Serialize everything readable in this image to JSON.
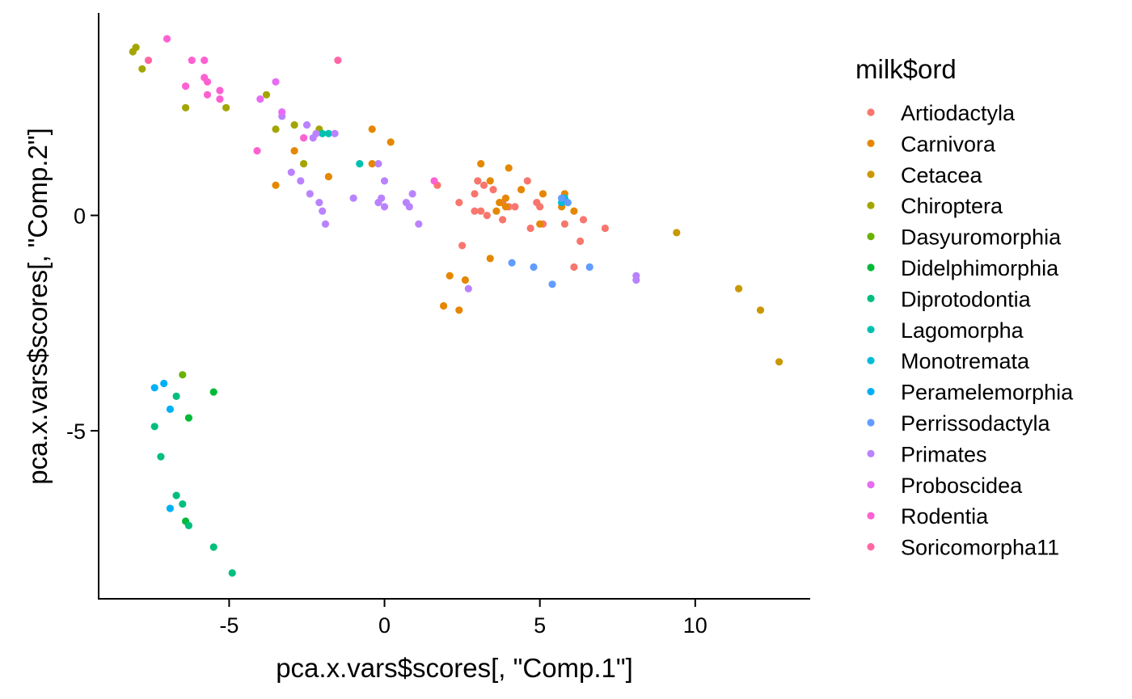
{
  "chart_data": {
    "type": "scatter",
    "title": "",
    "xlabel": "pca.x.vars$scores[, \"Comp.1\"]",
    "ylabel": "pca.x.vars$scores[, \"Comp.2\"]",
    "xlim": [
      -9.2,
      13.7
    ],
    "ylim": [
      -8.9,
      4.7
    ],
    "x_ticks": [
      -5,
      0,
      5,
      10
    ],
    "x_tick_labels": [
      "-5",
      "0",
      "5",
      "10"
    ],
    "y_ticks": [
      -5,
      0
    ],
    "y_tick_labels": [
      "-5",
      "0"
    ],
    "grid": false,
    "legend_title": "milk$ord",
    "legend_position": "right",
    "series": [
      {
        "name": "Artiodactyla",
        "color": "#F8766D",
        "points": [
          [
            3.0,
            0.8
          ],
          [
            3.2,
            0.7
          ],
          [
            3.5,
            0.6
          ],
          [
            3.8,
            0.3
          ],
          [
            4.0,
            0.2
          ],
          [
            4.2,
            0.2
          ],
          [
            4.6,
            0.8
          ],
          [
            4.9,
            0.3
          ],
          [
            5.1,
            -0.2
          ],
          [
            4.7,
            -0.3
          ],
          [
            3.1,
            0.1
          ],
          [
            2.9,
            0.5
          ],
          [
            2.9,
            0.1
          ],
          [
            3.3,
            0.0
          ],
          [
            3.8,
            -0.1
          ],
          [
            5.0,
            0.2
          ],
          [
            5.8,
            -0.2
          ],
          [
            6.1,
            -1.2
          ],
          [
            6.3,
            -0.6
          ],
          [
            6.4,
            -0.1
          ],
          [
            7.1,
            -0.3
          ],
          [
            2.5,
            -0.7
          ],
          [
            2.4,
            0.3
          ],
          [
            1.7,
            0.7
          ]
        ]
      },
      {
        "name": "Carnivora",
        "color": "#E58700",
        "points": [
          [
            -0.4,
            2.0
          ],
          [
            0.2,
            1.7
          ],
          [
            -1.8,
            0.9
          ],
          [
            -2.9,
            1.5
          ],
          [
            -3.5,
            0.7
          ],
          [
            3.1,
            1.2
          ],
          [
            3.4,
            0.8
          ],
          [
            3.9,
            0.4
          ],
          [
            3.9,
            0.2
          ],
          [
            4.0,
            1.1
          ],
          [
            4.4,
            0.6
          ],
          [
            5.1,
            0.5
          ],
          [
            5.7,
            0.2
          ],
          [
            5.8,
            0.5
          ],
          [
            6.1,
            0.1
          ],
          [
            3.4,
            -1.0
          ],
          [
            2.6,
            -1.5
          ],
          [
            3.6,
            0.1
          ],
          [
            5.0,
            -0.2
          ],
          [
            2.1,
            -1.4
          ],
          [
            1.9,
            -2.1
          ],
          [
            2.4,
            -2.2
          ],
          [
            3.7,
            0.3
          ],
          [
            -0.4,
            1.2
          ]
        ]
      },
      {
        "name": "Cetacea",
        "color": "#C99800",
        "points": [
          [
            9.4,
            -0.4
          ],
          [
            11.4,
            -1.7
          ],
          [
            12.1,
            -2.2
          ],
          [
            12.7,
            -3.4
          ]
        ]
      },
      {
        "name": "Chiroptera",
        "color": "#A3A500",
        "points": [
          [
            -8.0,
            3.9
          ],
          [
            -7.8,
            3.4
          ],
          [
            -6.4,
            2.5
          ],
          [
            -5.1,
            2.5
          ],
          [
            -3.8,
            2.8
          ],
          [
            -3.5,
            2.0
          ],
          [
            -2.9,
            2.1
          ],
          [
            -2.1,
            2.0
          ],
          [
            -8.1,
            3.8
          ],
          [
            -2.6,
            1.2
          ]
        ]
      },
      {
        "name": "Dasyuromorphia",
        "color": "#6BB100",
        "points": [
          [
            -6.5,
            -3.7
          ]
        ]
      },
      {
        "name": "Didelphimorphia",
        "color": "#00BA38",
        "points": [
          [
            -6.3,
            -4.7
          ],
          [
            -5.5,
            -4.1
          ],
          [
            -6.4,
            -7.1
          ]
        ]
      },
      {
        "name": "Diprotodontia",
        "color": "#00BF7D",
        "points": [
          [
            -7.4,
            -4.9
          ],
          [
            -6.7,
            -4.2
          ],
          [
            -7.2,
            -5.6
          ],
          [
            -6.7,
            -6.5
          ],
          [
            -6.5,
            -6.7
          ],
          [
            -6.3,
            -7.2
          ],
          [
            -5.5,
            -7.7
          ],
          [
            -4.9,
            -8.3
          ]
        ]
      },
      {
        "name": "Lagomorpha",
        "color": "#00C0AF",
        "points": [
          [
            -2.0,
            1.9
          ],
          [
            -1.8,
            1.9
          ],
          [
            -0.8,
            1.2
          ]
        ]
      },
      {
        "name": "Monotremata",
        "color": "#00BCD8",
        "points": [
          [
            5.7,
            0.3
          ],
          [
            5.8,
            0.4
          ]
        ]
      },
      {
        "name": "Peramelemorphia",
        "color": "#00B0F6",
        "points": [
          [
            -7.4,
            -4.0
          ],
          [
            -7.1,
            -3.9
          ],
          [
            -6.9,
            -4.5
          ],
          [
            -6.9,
            -6.8
          ]
        ]
      },
      {
        "name": "Perrissodactyla",
        "color": "#619CFF",
        "points": [
          [
            4.1,
            -1.1
          ],
          [
            4.8,
            -1.2
          ],
          [
            5.4,
            -1.6
          ],
          [
            5.9,
            0.3
          ],
          [
            6.6,
            -1.2
          ],
          [
            5.7,
            0.4
          ]
        ]
      },
      {
        "name": "Primates",
        "color": "#B983FF",
        "points": [
          [
            -2.5,
            2.1
          ],
          [
            -2.2,
            1.9
          ],
          [
            -2.3,
            1.8
          ],
          [
            -3.0,
            1.0
          ],
          [
            -2.7,
            0.8
          ],
          [
            -2.4,
            0.5
          ],
          [
            -2.1,
            0.3
          ],
          [
            -2.0,
            0.1
          ],
          [
            -1.9,
            -0.2
          ],
          [
            -1.0,
            0.4
          ],
          [
            -0.2,
            1.2
          ],
          [
            0.0,
            0.8
          ],
          [
            -0.1,
            0.4
          ],
          [
            -0.2,
            0.3
          ],
          [
            0.0,
            0.2
          ],
          [
            0.7,
            0.3
          ],
          [
            0.8,
            0.2
          ],
          [
            0.9,
            0.5
          ],
          [
            1.1,
            -0.2
          ],
          [
            2.7,
            -1.7
          ],
          [
            8.1,
            -1.4
          ],
          [
            8.1,
            -1.5
          ],
          [
            -1.6,
            1.9
          ],
          [
            -3.3,
            2.3
          ]
        ]
      },
      {
        "name": "Proboscidea",
        "color": "#E76BF3",
        "points": [
          [
            -3.3,
            2.4
          ],
          [
            -4.0,
            2.7
          ],
          [
            -3.5,
            3.1
          ]
        ]
      },
      {
        "name": "Rodentia",
        "color": "#FD61D1",
        "points": [
          [
            -7.0,
            4.1
          ],
          [
            -6.2,
            3.6
          ],
          [
            -5.8,
            3.6
          ],
          [
            -5.8,
            3.2
          ],
          [
            -5.7,
            3.1
          ],
          [
            -6.4,
            3.0
          ],
          [
            -5.7,
            2.8
          ],
          [
            -5.3,
            2.9
          ],
          [
            -5.3,
            2.7
          ],
          [
            -4.1,
            1.5
          ],
          [
            -2.6,
            1.8
          ],
          [
            1.6,
            0.8
          ]
        ]
      },
      {
        "name": "Soricomorpha11",
        "color": "#FF67A4",
        "points": [
          [
            -7.6,
            3.6
          ],
          [
            -1.5,
            3.6
          ]
        ]
      }
    ]
  }
}
